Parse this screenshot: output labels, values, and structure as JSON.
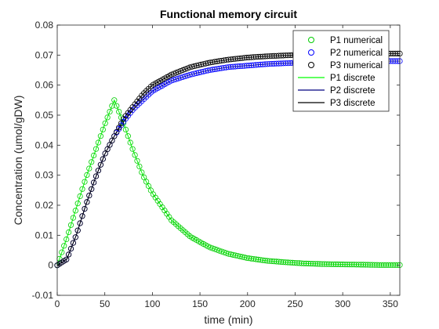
{
  "chart_data": {
    "type": "line",
    "title": "Functional memory circuit",
    "xlabel": "time (min)",
    "ylabel": "Concentration (umol/gDW)",
    "xlim": [
      0,
      360
    ],
    "ylim": [
      -0.01,
      0.08
    ],
    "xticks": [
      "0",
      "50",
      "100",
      "150",
      "200",
      "250",
      "300",
      "350"
    ],
    "yticks": [
      "-0.01",
      "0",
      "0.01",
      "0.02",
      "0.03",
      "0.04",
      "0.05",
      "0.06",
      "0.07",
      "0.08"
    ],
    "grid": false,
    "legend_position": "top-right",
    "x": [
      0,
      10,
      20,
      30,
      40,
      50,
      60,
      70,
      80,
      90,
      100,
      120,
      140,
      160,
      180,
      200,
      220,
      240,
      260,
      280,
      300,
      320,
      340,
      360
    ],
    "series": [
      {
        "name": "P1 numerical",
        "style": "markers",
        "color": "#00cc00",
        "values": [
          0.0,
          0.009,
          0.019,
          0.029,
          0.038,
          0.047,
          0.055,
          0.047,
          0.038,
          0.03,
          0.024,
          0.015,
          0.0095,
          0.006,
          0.0038,
          0.0024,
          0.0015,
          0.001,
          0.0006,
          0.0004,
          0.0003,
          0.0002,
          0.0001,
          0.0001
        ]
      },
      {
        "name": "P2 numerical",
        "style": "markers",
        "color": "#0000ff",
        "values": [
          0.0,
          0.002,
          0.01,
          0.02,
          0.029,
          0.037,
          0.043,
          0.048,
          0.052,
          0.055,
          0.058,
          0.0615,
          0.0635,
          0.065,
          0.066,
          0.0665,
          0.067,
          0.0673,
          0.0675,
          0.0677,
          0.0678,
          0.0679,
          0.068,
          0.068
        ]
      },
      {
        "name": "P3 numerical",
        "style": "markers",
        "color": "#000000",
        "values": [
          0.0,
          0.002,
          0.01,
          0.02,
          0.029,
          0.037,
          0.043,
          0.049,
          0.053,
          0.057,
          0.06,
          0.0635,
          0.066,
          0.0675,
          0.0685,
          0.0692,
          0.0696,
          0.0699,
          0.0701,
          0.0702,
          0.0703,
          0.0704,
          0.0705,
          0.0705
        ]
      },
      {
        "name": "P1 discrete",
        "style": "line",
        "color": "#00ff00"
      },
      {
        "name": "P2 discrete",
        "style": "line",
        "color": "#000080"
      },
      {
        "name": "P3 discrete",
        "style": "line",
        "color": "#000000"
      }
    ]
  }
}
